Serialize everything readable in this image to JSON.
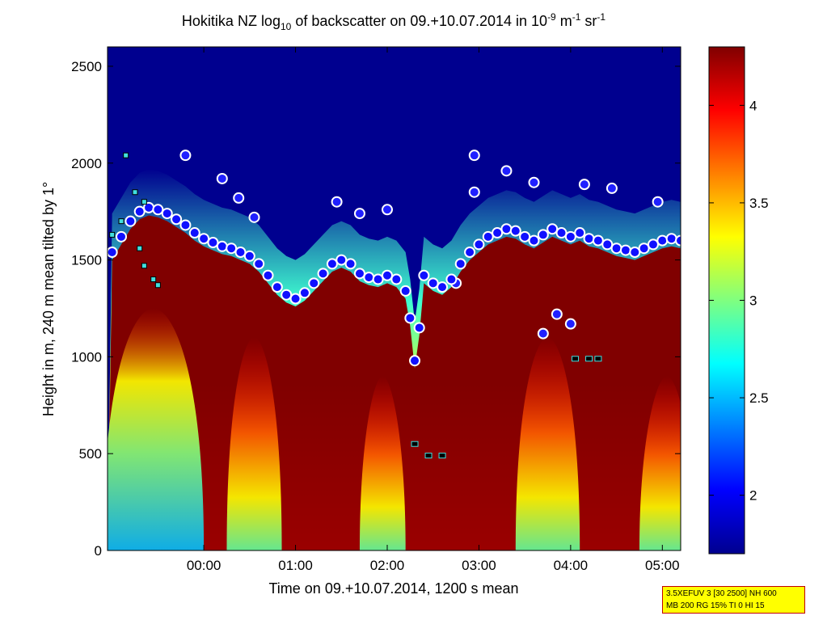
{
  "chart_data": {
    "type": "heatmap",
    "title_parts": [
      "Hokitika NZ log",
      "10",
      " of backscatter on 09.+10.07.2014 in 10",
      "-9",
      " m",
      "-1",
      " sr",
      "-1"
    ],
    "xlabel": "Time on 09.+10.07.2014, 1200 s mean",
    "ylabel": "Height in m, 240 m mean tilted by 1°",
    "x_range_hours": [
      -1.05,
      5.2
    ],
    "xticks": [
      {
        "value": 0,
        "label": "00:00"
      },
      {
        "value": 1,
        "label": "01:00"
      },
      {
        "value": 2,
        "label": "02:00"
      },
      {
        "value": 3,
        "label": "03:00"
      },
      {
        "value": 4,
        "label": "04:00"
      },
      {
        "value": 5,
        "label": "05:00"
      }
    ],
    "ylim": [
      0,
      2600
    ],
    "yticks": [
      0,
      500,
      1000,
      1500,
      2000,
      2500
    ],
    "colorbar": {
      "range": [
        1.7,
        4.3
      ],
      "ticks": [
        2,
        2.5,
        3,
        3.5,
        4
      ],
      "tick_labels": [
        "2",
        "2.5",
        "3",
        "3.5",
        "4"
      ]
    },
    "cloud_base_series": {
      "name": "layer height (blue dots, white outline)",
      "x": [
        -1.0,
        -0.9,
        -0.8,
        -0.7,
        -0.6,
        -0.5,
        -0.4,
        -0.3,
        -0.2,
        -0.1,
        0.0,
        0.1,
        0.2,
        0.3,
        0.4,
        0.5,
        0.6,
        0.7,
        0.8,
        0.9,
        1.0,
        1.1,
        1.2,
        1.3,
        1.4,
        1.5,
        1.6,
        1.7,
        1.8,
        1.9,
        2.0,
        2.1,
        2.2,
        2.25,
        2.3,
        2.35,
        2.4,
        2.5,
        2.6,
        2.7,
        2.8,
        2.9,
        3.0,
        3.1,
        3.2,
        3.3,
        3.4,
        3.5,
        3.6,
        3.7,
        3.8,
        3.9,
        4.0,
        4.1,
        4.2,
        4.3,
        4.4,
        4.5,
        4.6,
        4.7,
        4.8,
        4.9,
        5.0,
        5.1,
        5.2
      ],
      "y": [
        1540,
        1620,
        1700,
        1750,
        1770,
        1760,
        1740,
        1710,
        1680,
        1640,
        1610,
        1590,
        1570,
        1560,
        1540,
        1520,
        1480,
        1420,
        1360,
        1320,
        1300,
        1330,
        1380,
        1430,
        1480,
        1500,
        1480,
        1430,
        1410,
        1400,
        1420,
        1400,
        1340,
        1200,
        980,
        1150,
        1420,
        1380,
        1360,
        1400,
        1480,
        1540,
        1580,
        1620,
        1640,
        1660,
        1650,
        1620,
        1600,
        1630,
        1660,
        1640,
        1620,
        1640,
        1610,
        1600,
        1580,
        1560,
        1550,
        1540,
        1560,
        1580,
        1600,
        1610,
        1600
      ]
    },
    "cloud_tops": [
      {
        "x": 0.2,
        "y": 1920
      },
      {
        "x": 0.38,
        "y": 1820
      },
      {
        "x": 0.55,
        "y": 1720
      },
      {
        "x": 1.45,
        "y": 1800
      },
      {
        "x": 1.7,
        "y": 1740
      },
      {
        "x": 2.0,
        "y": 1760
      },
      {
        "x": 2.95,
        "y": 2040
      },
      {
        "x": 2.95,
        "y": 1850
      },
      {
        "x": 3.3,
        "y": 1960
      },
      {
        "x": 3.6,
        "y": 1900
      },
      {
        "x": 4.15,
        "y": 1890
      },
      {
        "x": 4.45,
        "y": 1870
      },
      {
        "x": 4.95,
        "y": 1800
      },
      {
        "x": -0.2,
        "y": 2040
      },
      {
        "x": 2.75,
        "y": 1380
      },
      {
        "x": 3.7,
        "y": 1120
      },
      {
        "x": 3.85,
        "y": 1220
      },
      {
        "x": 4.0,
        "y": 1170
      }
    ],
    "mixing_layer_markers": [
      {
        "x": 2.3,
        "y": 550
      },
      {
        "x": 2.45,
        "y": 490
      },
      {
        "x": 2.6,
        "y": 490
      },
      {
        "x": 4.05,
        "y": 990
      },
      {
        "x": 4.2,
        "y": 990
      },
      {
        "x": 4.3,
        "y": 990
      }
    ],
    "square_markers": [
      {
        "x": -0.85,
        "y": 2040
      },
      {
        "x": -0.75,
        "y": 1850
      },
      {
        "x": -0.65,
        "y": 1800
      },
      {
        "x": -0.7,
        "y": 1560
      },
      {
        "x": -0.65,
        "y": 1470
      },
      {
        "x": -0.55,
        "y": 1400
      },
      {
        "x": -0.5,
        "y": 1370
      },
      {
        "x": -1.0,
        "y": 1630
      },
      {
        "x": -0.9,
        "y": 1700
      }
    ]
  },
  "info_box": {
    "line1": "3.5XEFUV 3 [30 2500] NH 600",
    "line2": "MB 200 RG 15% TI 0 HI 15"
  }
}
